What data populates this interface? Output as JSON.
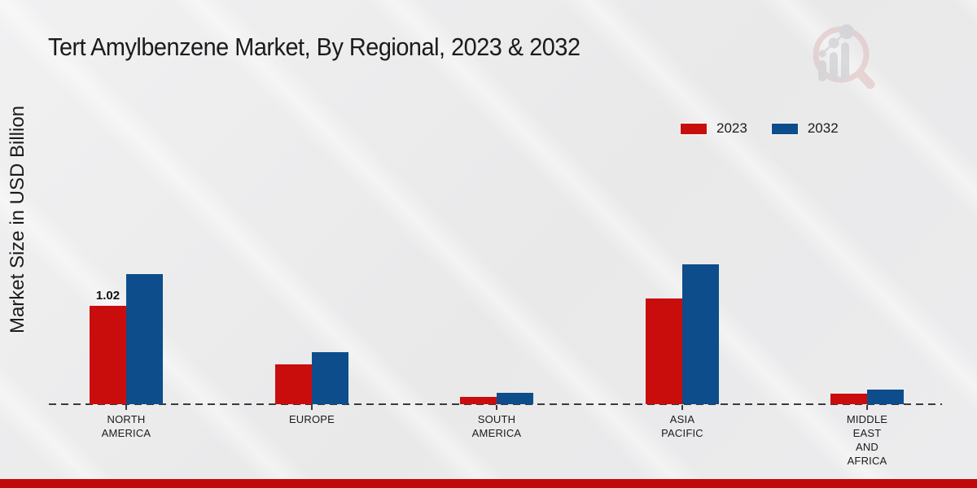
{
  "title": "Tert Amylbenzene Market, By Regional, 2023 & 2032",
  "y_axis_label": "Market Size in USD Billion",
  "legend": {
    "items": [
      {
        "label": "2023",
        "color": "#c90d0d"
      },
      {
        "label": "2032",
        "color": "#0d4d8b"
      }
    ]
  },
  "chart_data": {
    "type": "bar",
    "title": "Tert Amylbenzene Market, By Regional, 2023 & 2032",
    "ylabel": "Market Size in USD Billion",
    "categories": [
      "NORTH AMERICA",
      "EUROPE",
      "SOUTH AMERICA",
      "ASIA PACIFIC",
      "MIDDLE EAST AND AFRICA"
    ],
    "series": [
      {
        "name": "2023",
        "color": "#c90d0d",
        "values": [
          1.02,
          0.41,
          0.08,
          1.1,
          0.11
        ]
      },
      {
        "name": "2032",
        "color": "#0d4d8b",
        "values": [
          1.35,
          0.54,
          0.12,
          1.45,
          0.15
        ]
      }
    ],
    "bar_labels": [
      {
        "series": "2023",
        "category": "NORTH AMERICA",
        "text": "1.02"
      }
    ],
    "ylim": [
      0,
      1.6
    ],
    "grid": false,
    "legend_position": "top-right",
    "baseline_style": "dashed"
  },
  "watermark": {
    "icon": "market-research-future-logo"
  },
  "colors": {
    "background": "#eaeaeb",
    "text": "#1b1b1b",
    "axis": "#3b3b3b",
    "footer_bar": "#c00909"
  }
}
